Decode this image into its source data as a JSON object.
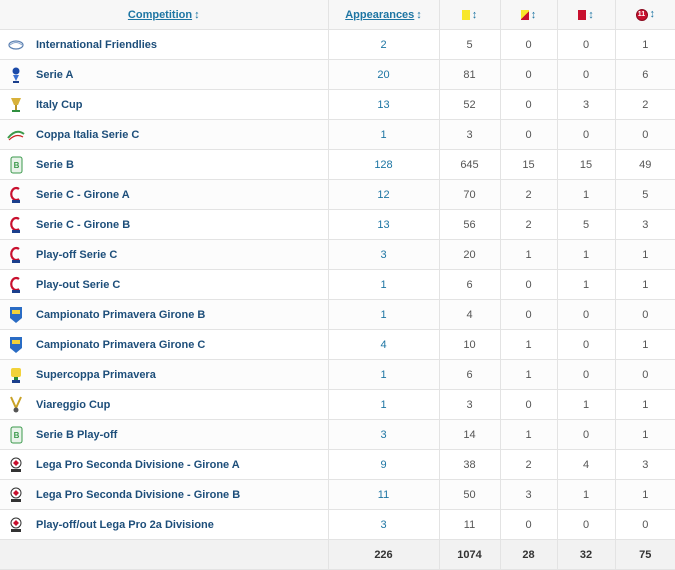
{
  "header": {
    "competition_label": "Competition",
    "appearances_label": "Appearances",
    "sort_arrow": "↕",
    "pen_icon_text": "11"
  },
  "colors": {
    "link": "#1d75a3",
    "yellow_card": "#f8e72a",
    "red_card": "#c8102e"
  },
  "rows": [
    {
      "name": "International Friendlies",
      "icon": "fifa-logo-icon",
      "apps": "2",
      "yellow": "5",
      "second_yellow": "0",
      "red": "0",
      "pens": "1"
    },
    {
      "name": "Serie A",
      "icon": "serie-a-logo-icon",
      "apps": "20",
      "yellow": "81",
      "second_yellow": "0",
      "red": "0",
      "pens": "6"
    },
    {
      "name": "Italy Cup",
      "icon": "italy-cup-logo-icon",
      "apps": "13",
      "yellow": "52",
      "second_yellow": "0",
      "red": "3",
      "pens": "2"
    },
    {
      "name": "Coppa Italia Serie C",
      "icon": "coppa-italia-serie-c-logo-icon",
      "apps": "1",
      "yellow": "3",
      "second_yellow": "0",
      "red": "0",
      "pens": "0"
    },
    {
      "name": "Serie B",
      "icon": "serie-b-logo-icon",
      "apps": "128",
      "yellow": "645",
      "second_yellow": "15",
      "red": "15",
      "pens": "49"
    },
    {
      "name": "Serie C - Girone A",
      "icon": "serie-c-logo-icon",
      "apps": "12",
      "yellow": "70",
      "second_yellow": "2",
      "red": "1",
      "pens": "5"
    },
    {
      "name": "Serie C - Girone B",
      "icon": "serie-c-logo-icon",
      "apps": "13",
      "yellow": "56",
      "second_yellow": "2",
      "red": "5",
      "pens": "3"
    },
    {
      "name": "Play-off Serie C",
      "icon": "serie-c-logo-icon",
      "apps": "3",
      "yellow": "20",
      "second_yellow": "1",
      "red": "1",
      "pens": "1"
    },
    {
      "name": "Play-out Serie C",
      "icon": "serie-c-logo-icon",
      "apps": "1",
      "yellow": "6",
      "second_yellow": "0",
      "red": "1",
      "pens": "1"
    },
    {
      "name": "Campionato Primavera Girone B",
      "icon": "primavera-logo-icon",
      "apps": "1",
      "yellow": "4",
      "second_yellow": "0",
      "red": "0",
      "pens": "0"
    },
    {
      "name": "Campionato Primavera Girone C",
      "icon": "primavera-logo-icon",
      "apps": "4",
      "yellow": "10",
      "second_yellow": "1",
      "red": "0",
      "pens": "1"
    },
    {
      "name": "Supercoppa Primavera",
      "icon": "supercoppa-primavera-logo-icon",
      "apps": "1",
      "yellow": "6",
      "second_yellow": "1",
      "red": "0",
      "pens": "0"
    },
    {
      "name": "Viareggio Cup",
      "icon": "viareggio-cup-logo-icon",
      "apps": "1",
      "yellow": "3",
      "second_yellow": "0",
      "red": "1",
      "pens": "1"
    },
    {
      "name": "Serie B Play-off",
      "icon": "serie-b-logo-icon",
      "apps": "3",
      "yellow": "14",
      "second_yellow": "1",
      "red": "0",
      "pens": "1"
    },
    {
      "name": "Lega Pro Seconda Divisione - Girone A",
      "icon": "lega-pro-logo-icon",
      "apps": "9",
      "yellow": "38",
      "second_yellow": "2",
      "red": "4",
      "pens": "3"
    },
    {
      "name": "Lega Pro Seconda Divisione - Girone B",
      "icon": "lega-pro-logo-icon",
      "apps": "11",
      "yellow": "50",
      "second_yellow": "3",
      "red": "1",
      "pens": "1"
    },
    {
      "name": "Play-off/out Lega Pro 2a Divisione",
      "icon": "lega-pro-logo-icon",
      "apps": "3",
      "yellow": "11",
      "second_yellow": "0",
      "red": "0",
      "pens": "0"
    }
  ],
  "totals": {
    "apps": "226",
    "yellow": "1074",
    "second_yellow": "28",
    "red": "32",
    "pens": "75"
  }
}
